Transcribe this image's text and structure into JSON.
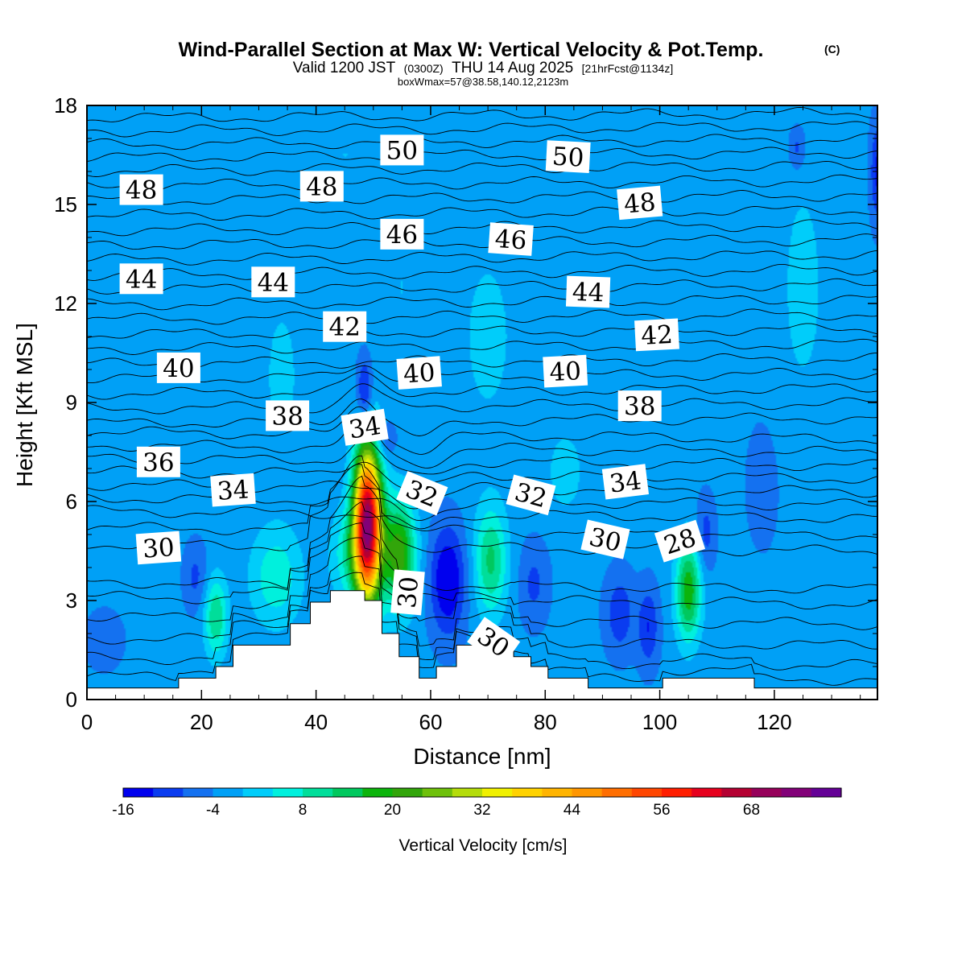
{
  "header": {
    "title": "Wind-Parallel Section at Max W: Vertical Velocity & Pot.Temp.",
    "copyright": "(C)",
    "valid_prefix": "Valid 1200 JST",
    "valid_utc": "(0300Z)",
    "valid_date": "THU 14 Aug 2025",
    "forecast": "[21hrFcst@1134z]",
    "box_info": "boxWmax=57@38.58,140.12,2123m"
  },
  "chart_data": {
    "type": "heatmap",
    "xlabel": "Distance [nm]",
    "ylabel": "Height [Kft MSL]",
    "xlim": [
      0,
      138
    ],
    "ylim": [
      0,
      18
    ],
    "x_ticks": [
      0,
      20,
      40,
      60,
      80,
      100,
      120
    ],
    "y_ticks": [
      0,
      3,
      6,
      9,
      12,
      15,
      18
    ],
    "terrain_profile": [
      [
        0,
        0.35
      ],
      [
        16,
        0.35
      ],
      [
        16,
        0.65
      ],
      [
        22.5,
        0.65
      ],
      [
        22.5,
        1.0
      ],
      [
        25.5,
        1.0
      ],
      [
        25.5,
        1.65
      ],
      [
        35.5,
        1.65
      ],
      [
        35.5,
        2.3
      ],
      [
        39,
        2.3
      ],
      [
        39,
        2.95
      ],
      [
        42.5,
        2.95
      ],
      [
        42.5,
        3.3
      ],
      [
        48.5,
        3.3
      ],
      [
        48.5,
        3.0
      ],
      [
        51.5,
        3.0
      ],
      [
        51.5,
        2.0
      ],
      [
        54.5,
        2.0
      ],
      [
        54.5,
        1.3
      ],
      [
        58,
        1.3
      ],
      [
        58,
        0.65
      ],
      [
        61,
        0.65
      ],
      [
        61,
        1.0
      ],
      [
        64.5,
        1.0
      ],
      [
        64.5,
        1.65
      ],
      [
        74.5,
        1.65
      ],
      [
        74.5,
        1.3
      ],
      [
        77.5,
        1.3
      ],
      [
        77.5,
        1.0
      ],
      [
        80.5,
        1.0
      ],
      [
        80.5,
        0.65
      ],
      [
        87.5,
        0.65
      ],
      [
        87.5,
        0.35
      ],
      [
        100.5,
        0.35
      ],
      [
        100.5,
        0.65
      ],
      [
        116.5,
        0.65
      ],
      [
        116.5,
        0.35
      ],
      [
        138,
        0.35
      ]
    ],
    "vertical_velocity": {
      "name": "Vertical Velocity",
      "units": "cm/s",
      "background": -3,
      "cells": [
        {
          "x": 49,
          "y": 5.3,
          "sx": 2.4,
          "sy": 2.3,
          "amp": 75
        },
        {
          "x": 46,
          "y": 4.4,
          "sx": 3.5,
          "sy": 1.4,
          "amp": 10
        },
        {
          "x": 54.5,
          "y": 4.4,
          "sx": 2.8,
          "sy": 1.6,
          "amp": 26
        },
        {
          "x": 63,
          "y": 3.6,
          "sx": 3.0,
          "sy": 1.6,
          "amp": -14
        },
        {
          "x": 70.5,
          "y": 4.2,
          "sx": 2.8,
          "sy": 1.6,
          "amp": 16
        },
        {
          "x": 78,
          "y": 3.5,
          "sx": 2.5,
          "sy": 1.2,
          "amp": -6
        },
        {
          "x": 93,
          "y": 2.6,
          "sx": 2.5,
          "sy": 1.2,
          "amp": -8
        },
        {
          "x": 98,
          "y": 2.2,
          "sx": 1.8,
          "sy": 1.2,
          "amp": -9
        },
        {
          "x": 105,
          "y": 3.3,
          "sx": 2.2,
          "sy": 1.5,
          "amp": 22
        },
        {
          "x": 22.5,
          "y": 2.5,
          "sx": 2.0,
          "sy": 1.2,
          "amp": 15
        },
        {
          "x": 33,
          "y": 3.7,
          "sx": 4.5,
          "sy": 1.5,
          "amp": 10
        },
        {
          "x": 19,
          "y": 3.7,
          "sx": 2.0,
          "sy": 1.0,
          "amp": -6
        },
        {
          "x": 3,
          "y": 1.8,
          "sx": 3.0,
          "sy": 0.8,
          "amp": -5
        },
        {
          "x": 48.5,
          "y": 9.3,
          "sx": 1.3,
          "sy": 1.0,
          "amp": -12
        },
        {
          "x": 52,
          "y": 7.9,
          "sx": 2.0,
          "sy": 0.6,
          "amp": -7
        },
        {
          "x": 108,
          "y": 5.0,
          "sx": 1.6,
          "sy": 1.1,
          "amp": -7
        },
        {
          "x": 83.5,
          "y": 6.9,
          "sx": 3.0,
          "sy": 1.2,
          "amp": 6
        },
        {
          "x": 34,
          "y": 9.8,
          "sx": 4.0,
          "sy": 3.0,
          "amp": 4
        },
        {
          "x": 70,
          "y": 11.0,
          "sx": 6.0,
          "sy": 3.5,
          "amp": 4
        },
        {
          "x": 55,
          "y": 12.5,
          "sx": 4.0,
          "sy": 4.0,
          "amp": 3
        },
        {
          "x": 12,
          "y": 12.0,
          "sx": 5.0,
          "sy": 4.0,
          "amp": 3
        },
        {
          "x": 125,
          "y": 12.5,
          "sx": 5.0,
          "sy": 4.5,
          "amp": 4
        },
        {
          "x": 100,
          "y": 16.5,
          "sx": 10.0,
          "sy": 1.5,
          "amp": 3
        },
        {
          "x": 45,
          "y": 16.5,
          "sx": 12.0,
          "sy": 1.5,
          "amp": 3
        },
        {
          "x": 124,
          "y": 16.7,
          "sx": 1.5,
          "sy": 0.7,
          "amp": -7
        },
        {
          "x": 138,
          "y": 16.0,
          "sx": 1.2,
          "sy": 1.5,
          "amp": -10
        },
        {
          "x": 118,
          "y": 6.5,
          "sx": 3.0,
          "sy": 2.0,
          "amp": -3
        }
      ]
    },
    "potential_temperature": {
      "name": "Pot.Temp.",
      "levels": [
        {
          "y": 0.6
        },
        {
          "y": 1.15
        },
        {
          "y": 1.75
        },
        {
          "y": 2.4
        },
        {
          "y": 3.0
        },
        {
          "y": 3.45
        },
        {
          "y": 4.6
        },
        {
          "y": 5.1
        },
        {
          "y": 5.6
        },
        {
          "y": 6.0
        },
        {
          "y": 6.4
        },
        {
          "y": 6.8
        },
        {
          "y": 7.2
        },
        {
          "y": 7.6
        },
        {
          "y": 8.0
        },
        {
          "y": 8.45
        },
        {
          "y": 8.9
        },
        {
          "y": 9.35
        },
        {
          "y": 9.8
        },
        {
          "y": 10.25
        },
        {
          "y": 10.7
        },
        {
          "y": 11.15
        },
        {
          "y": 11.6
        },
        {
          "y": 12.05
        },
        {
          "y": 12.5
        },
        {
          "y": 12.95
        },
        {
          "y": 13.4
        },
        {
          "y": 13.85
        },
        {
          "y": 14.3
        },
        {
          "y": 14.75
        },
        {
          "y": 15.2
        },
        {
          "y": 15.65
        },
        {
          "y": 16.1
        },
        {
          "y": 16.5
        },
        {
          "y": 16.9
        },
        {
          "y": 17.3
        },
        {
          "y": 17.7
        }
      ],
      "labels": [
        {
          "text": "48",
          "x": 9.5,
          "y": 15.45,
          "angle": 0
        },
        {
          "text": "48",
          "x": 41,
          "y": 15.55,
          "angle": 0
        },
        {
          "text": "50",
          "x": 55,
          "y": 16.65,
          "angle": 0
        },
        {
          "text": "50",
          "x": 84,
          "y": 16.45,
          "angle": 3
        },
        {
          "text": "48",
          "x": 96.5,
          "y": 15.05,
          "angle": -5
        },
        {
          "text": "46",
          "x": 55,
          "y": 14.1,
          "angle": 0
        },
        {
          "text": "46",
          "x": 74,
          "y": 13.95,
          "angle": 4
        },
        {
          "text": "44",
          "x": 9.5,
          "y": 12.75,
          "angle": 0
        },
        {
          "text": "44",
          "x": 32.5,
          "y": 12.65,
          "angle": 0
        },
        {
          "text": "44",
          "x": 87.5,
          "y": 12.35,
          "angle": 2
        },
        {
          "text": "42",
          "x": 45,
          "y": 11.3,
          "angle": 0
        },
        {
          "text": "42",
          "x": 99.5,
          "y": 11.05,
          "angle": -3
        },
        {
          "text": "40",
          "x": 16,
          "y": 10.05,
          "angle": 0
        },
        {
          "text": "40",
          "x": 58,
          "y": 9.9,
          "angle": -4
        },
        {
          "text": "40",
          "x": 83.5,
          "y": 9.95,
          "angle": -3
        },
        {
          "text": "38",
          "x": 35,
          "y": 8.6,
          "angle": 0
        },
        {
          "text": "38",
          "x": 96.5,
          "y": 8.9,
          "angle": 0
        },
        {
          "text": "34",
          "x": 48.5,
          "y": 8.25,
          "angle": -9
        },
        {
          "text": "36",
          "x": 12.5,
          "y": 7.2,
          "angle": 0
        },
        {
          "text": "34",
          "x": 25.5,
          "y": 6.35,
          "angle": -4
        },
        {
          "text": "34",
          "x": 94,
          "y": 6.6,
          "angle": -7
        },
        {
          "text": "32",
          "x": 58.5,
          "y": 6.25,
          "angle": 22
        },
        {
          "text": "32",
          "x": 77.5,
          "y": 6.2,
          "angle": 15
        },
        {
          "text": "30",
          "x": 12.5,
          "y": 4.6,
          "angle": -4
        },
        {
          "text": "30",
          "x": 90.5,
          "y": 4.85,
          "angle": 13
        },
        {
          "text": "28",
          "x": 103.5,
          "y": 4.8,
          "angle": -18
        },
        {
          "text": "30",
          "x": 56,
          "y": 3.25,
          "angle": -85
        },
        {
          "text": "30",
          "x": 71,
          "y": 1.75,
          "angle": 35
        }
      ]
    },
    "colorbar": {
      "title": "Vertical Velocity [cm/s]",
      "min": -16,
      "step": 4,
      "tick_labels": [
        "-16",
        "-4",
        "8",
        "20",
        "32",
        "44",
        "56",
        "68"
      ],
      "colors": [
        "#0000ee",
        "#0a3cf0",
        "#1471f0",
        "#00a0f6",
        "#00cdfa",
        "#00f0dd",
        "#00de9a",
        "#00c85e",
        "#0cb40c",
        "#32a50a",
        "#6ec00a",
        "#b4dc0a",
        "#f0f000",
        "#ffd200",
        "#ffb400",
        "#ff9600",
        "#ff6e00",
        "#ff4600",
        "#ff1e00",
        "#e6001e",
        "#b40032",
        "#96005a",
        "#820078",
        "#640096"
      ]
    }
  }
}
